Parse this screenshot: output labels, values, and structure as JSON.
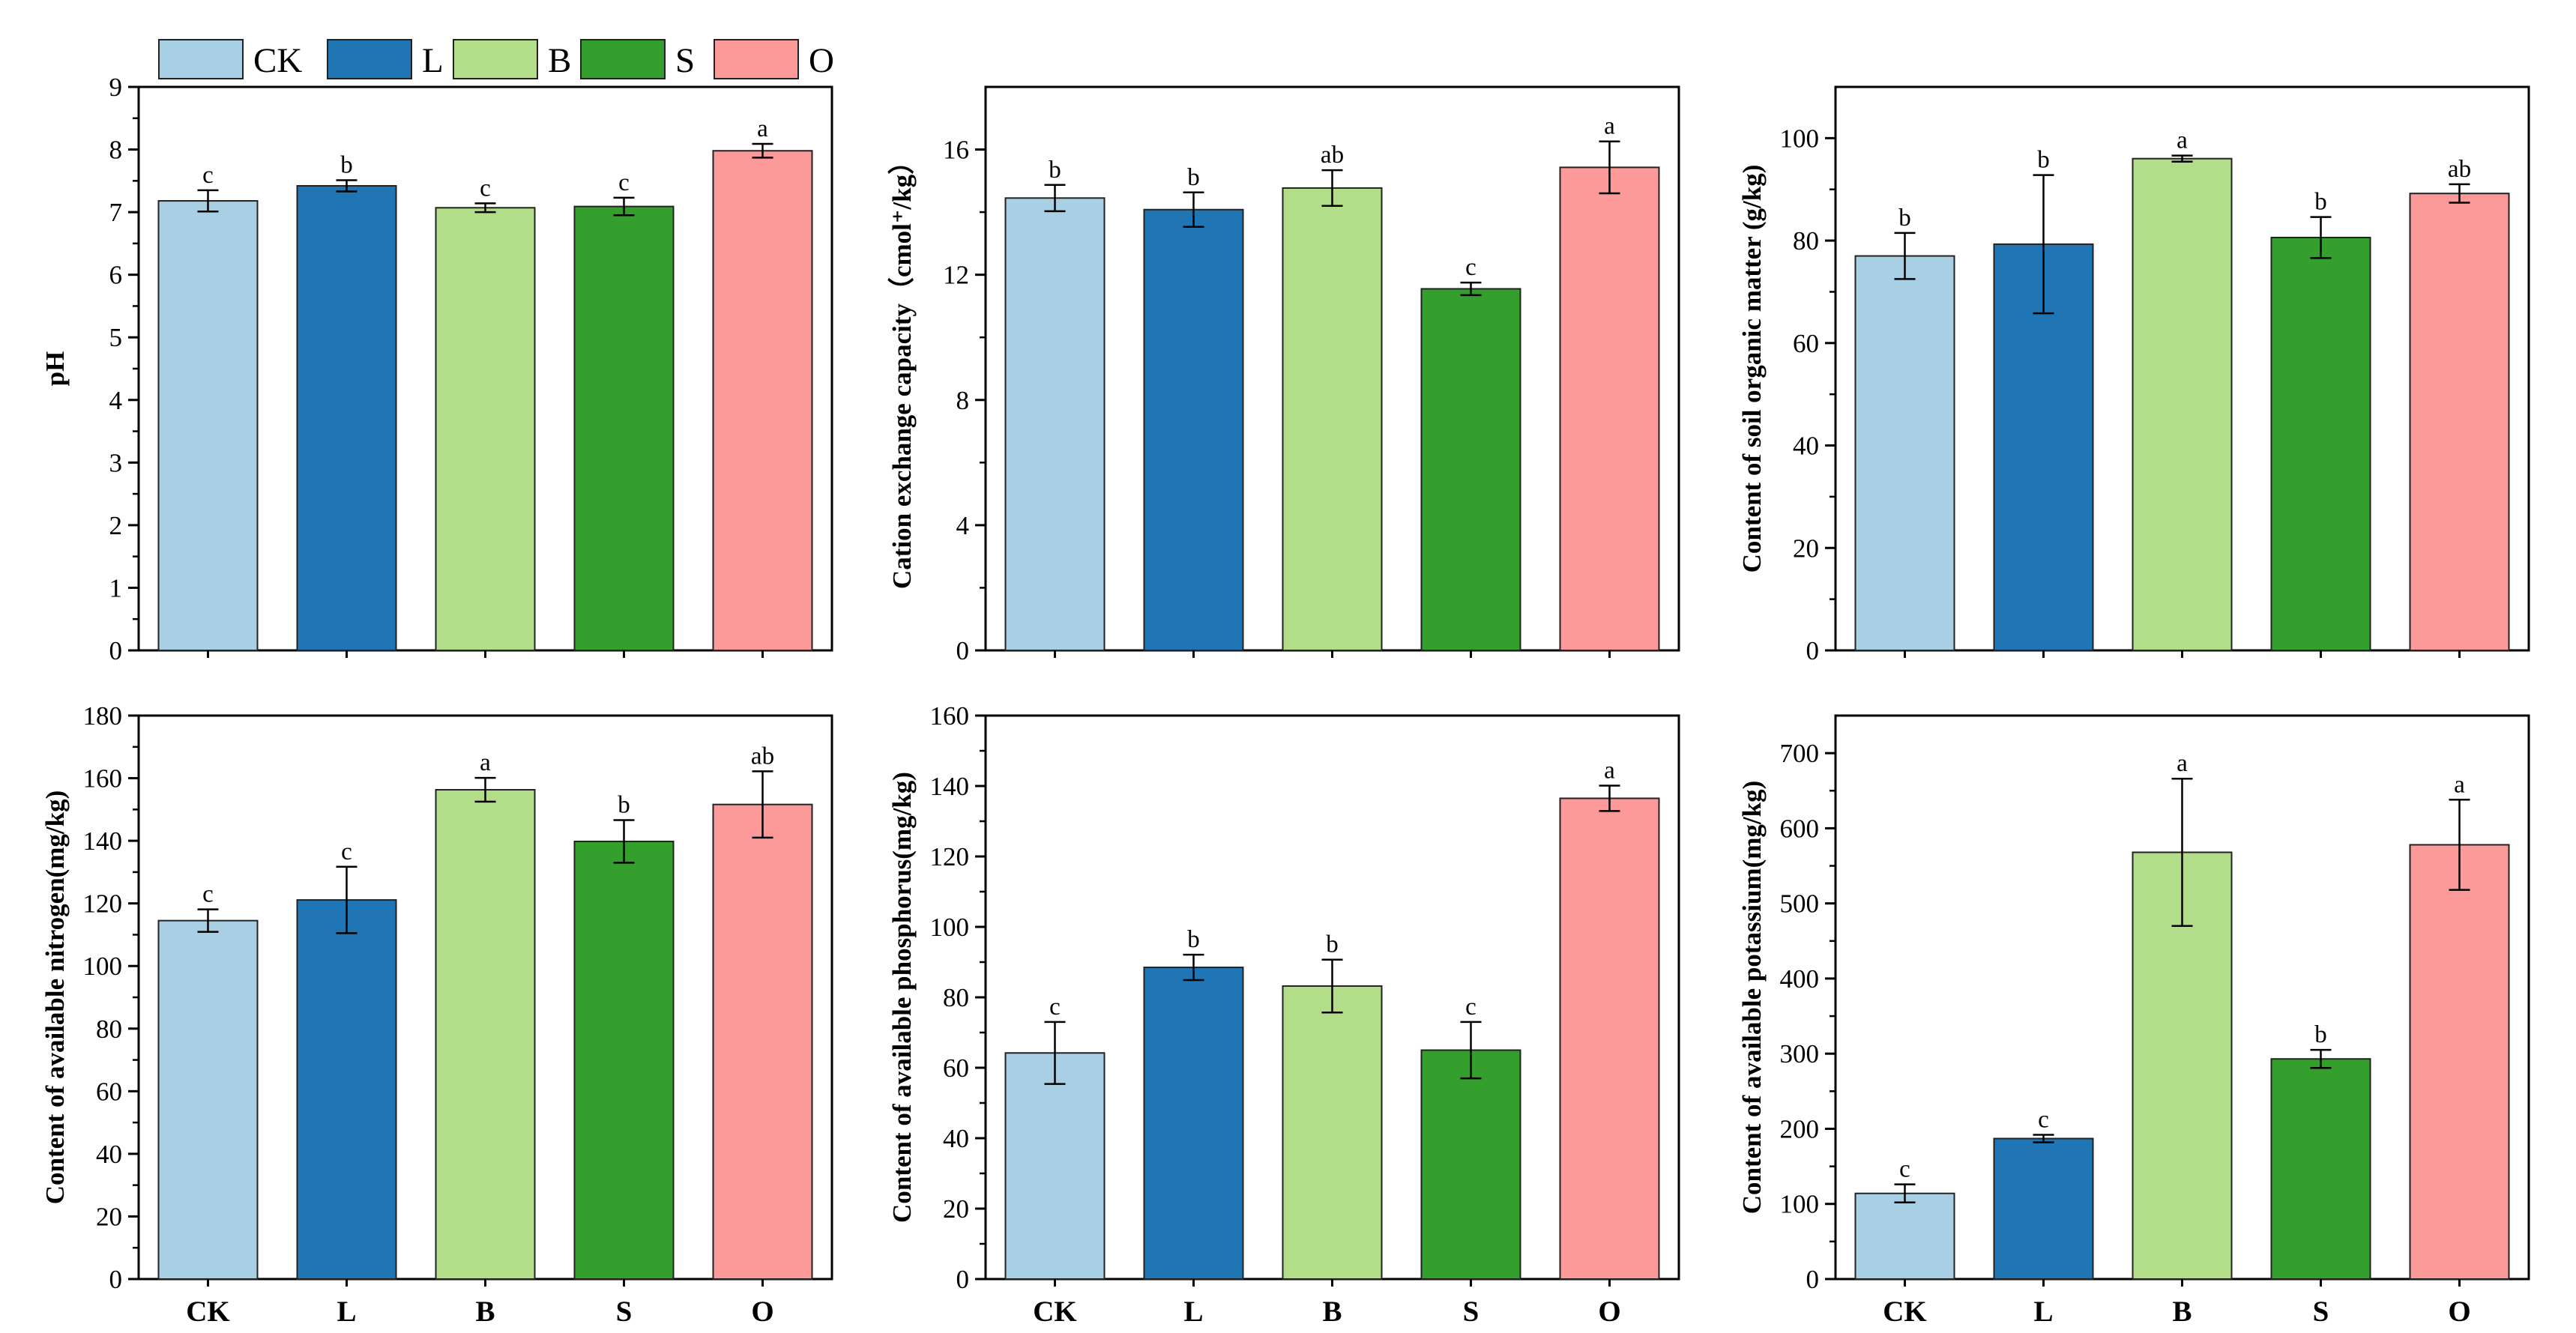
{
  "legend": {
    "items": [
      {
        "label": "CK",
        "color": "#a8cfe3"
      },
      {
        "label": "L",
        "color": "#2076b4"
      },
      {
        "label": "B",
        "color": "#b3de89"
      },
      {
        "label": "S",
        "color": "#349f2d"
      },
      {
        "label": "O",
        "color": "#fb9a99"
      }
    ]
  },
  "chart_data": [
    {
      "type": "bar",
      "title": "",
      "xlabel": "",
      "ylabel": "pH",
      "ylim": [
        0,
        9
      ],
      "yticks": [
        0,
        1,
        2,
        3,
        4,
        5,
        6,
        7,
        8,
        9
      ],
      "categories": [
        "CK",
        "L",
        "B",
        "S",
        "O"
      ],
      "show_category_labels": false,
      "values": [
        7.18,
        7.42,
        7.07,
        7.09,
        7.98
      ],
      "errors": [
        0.17,
        0.09,
        0.07,
        0.14,
        0.11
      ],
      "letters": [
        "c",
        "b",
        "c",
        "c",
        "a"
      ]
    },
    {
      "type": "bar",
      "title": "",
      "xlabel": "",
      "ylabel": "Cation exchange capacity（cmol⁺/kg）",
      "ylim": [
        0,
        18
      ],
      "yticks": [
        0,
        4,
        8,
        12,
        16
      ],
      "categories": [
        "CK",
        "L",
        "B",
        "S",
        "O"
      ],
      "show_category_labels": false,
      "values": [
        14.45,
        14.08,
        14.77,
        11.55,
        15.43
      ],
      "errors": [
        0.42,
        0.55,
        0.57,
        0.2,
        0.83
      ],
      "letters": [
        "b",
        "b",
        "ab",
        "c",
        "a"
      ]
    },
    {
      "type": "bar",
      "title": "",
      "xlabel": "",
      "ylabel": "Content of soil organic matter (g/kg)",
      "ylim": [
        0,
        110
      ],
      "yticks": [
        0,
        20,
        40,
        60,
        80,
        100
      ],
      "categories": [
        "CK",
        "L",
        "B",
        "S",
        "O"
      ],
      "show_category_labels": false,
      "values": [
        77.0,
        79.3,
        96.0,
        80.6,
        89.2
      ],
      "errors": [
        4.5,
        13.5,
        0.6,
        4.0,
        1.8
      ],
      "letters": [
        "b",
        "b",
        "a",
        "b",
        "ab"
      ]
    },
    {
      "type": "bar",
      "title": "",
      "xlabel": "",
      "ylabel": "Content of available nitrogen(mg/kg)",
      "ylim": [
        0,
        180
      ],
      "yticks": [
        0,
        20,
        40,
        60,
        80,
        100,
        120,
        140,
        160,
        180
      ],
      "categories": [
        "CK",
        "L",
        "B",
        "S",
        "O"
      ],
      "show_category_labels": true,
      "values": [
        114.5,
        121.1,
        156.3,
        139.8,
        151.6
      ],
      "errors": [
        3.6,
        10.6,
        3.8,
        6.8,
        10.6
      ],
      "letters": [
        "c",
        "c",
        "a",
        "b",
        "ab"
      ]
    },
    {
      "type": "bar",
      "title": "",
      "xlabel": "",
      "ylabel": "Content of available phosphorus(mg/kg)",
      "ylim": [
        0,
        160
      ],
      "yticks": [
        0,
        20,
        40,
        60,
        80,
        100,
        120,
        140,
        160
      ],
      "categories": [
        "CK",
        "L",
        "B",
        "S",
        "O"
      ],
      "show_category_labels": true,
      "values": [
        64.2,
        88.5,
        83.2,
        65.0,
        136.5
      ],
      "errors": [
        8.8,
        3.6,
        7.5,
        8.0,
        3.6
      ],
      "letters": [
        "c",
        "b",
        "b",
        "c",
        "a"
      ]
    },
    {
      "type": "bar",
      "title": "",
      "xlabel": "",
      "ylabel": "Content of available potassium(mg/kg)",
      "ylim": [
        0,
        750
      ],
      "yticks": [
        0,
        100,
        200,
        300,
        400,
        500,
        600,
        700
      ],
      "categories": [
        "CK",
        "L",
        "B",
        "S",
        "O"
      ],
      "show_category_labels": true,
      "values": [
        114.0,
        187.0,
        568.0,
        293.0,
        578.0
      ],
      "errors": [
        12.0,
        5.0,
        98.0,
        12.0,
        60.0
      ],
      "letters": [
        "c",
        "c",
        "a",
        "b",
        "a"
      ]
    }
  ]
}
